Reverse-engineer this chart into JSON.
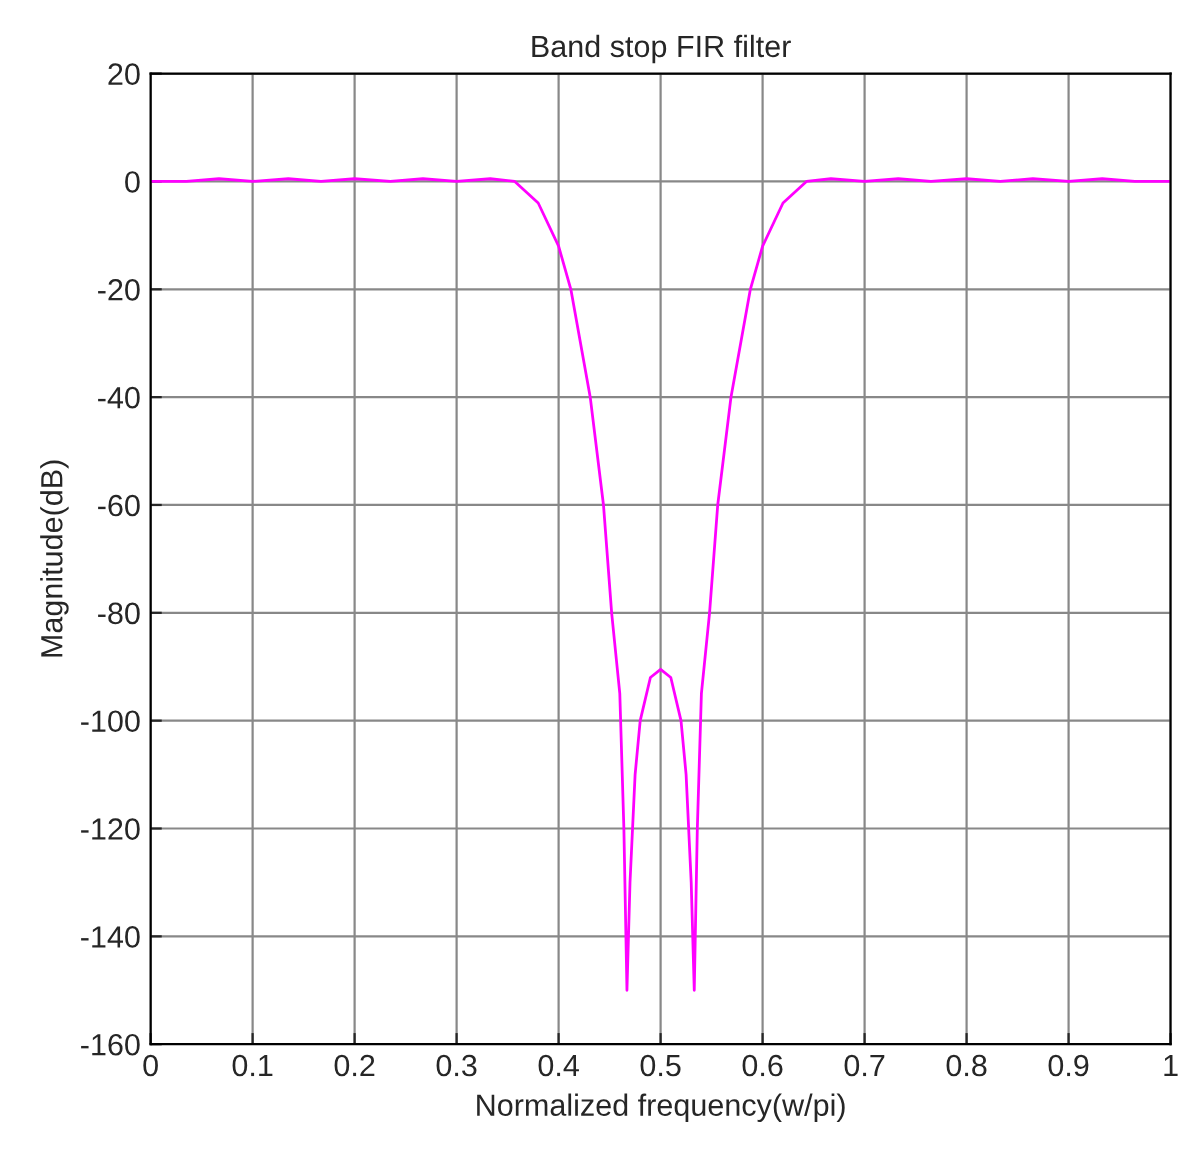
{
  "chart_data": {
    "type": "line",
    "title": "Band stop FIR filter",
    "xlabel": "Normalized frequency(w/pi)",
    "ylabel": "Magnitude(dB)",
    "series": [
      {
        "color": "#ff00ff",
        "x": [
          0,
          0.035,
          0.067,
          0.1,
          0.135,
          0.167,
          0.2,
          0.235,
          0.267,
          0.3,
          0.333,
          0.357,
          0.38,
          0.4,
          0.412,
          0.431,
          0.444,
          0.452,
          0.46,
          0.464,
          0.467,
          0.47,
          0.475,
          0.48,
          0.49,
          0.5,
          0.51,
          0.52,
          0.525,
          0.53,
          0.533,
          0.536,
          0.54,
          0.548,
          0.556,
          0.569,
          0.588,
          0.6,
          0.62,
          0.643,
          0.667,
          0.7,
          0.733,
          0.765,
          0.8,
          0.833,
          0.865,
          0.9,
          0.933,
          0.965,
          1
        ],
        "values": [
          0,
          0,
          0.5,
          0,
          0.5,
          0,
          0.5,
          0,
          0.5,
          0,
          0.5,
          0,
          -4,
          -12,
          -20,
          -40,
          -60,
          -80,
          -95,
          -120,
          -150,
          -130,
          -110,
          -100,
          -92,
          -90.5,
          -92,
          -100,
          -110,
          -130,
          -150,
          -120,
          -95,
          -80,
          -60,
          -40,
          -20,
          -12,
          -4,
          0,
          0.5,
          0,
          0.5,
          0,
          0.5,
          0,
          0.5,
          0,
          0.5,
          0,
          0
        ]
      }
    ],
    "xlim": [
      0,
      1
    ],
    "xticks": [
      0,
      0.1,
      0.2,
      0.3,
      0.4,
      0.5,
      0.6,
      0.7,
      0.8,
      0.9,
      1
    ],
    "ylim": [
      -160,
      20
    ],
    "yticks": [
      -160,
      -140,
      -120,
      -100,
      -80,
      -60,
      -40,
      -20,
      0,
      20
    ],
    "grid": true
  }
}
